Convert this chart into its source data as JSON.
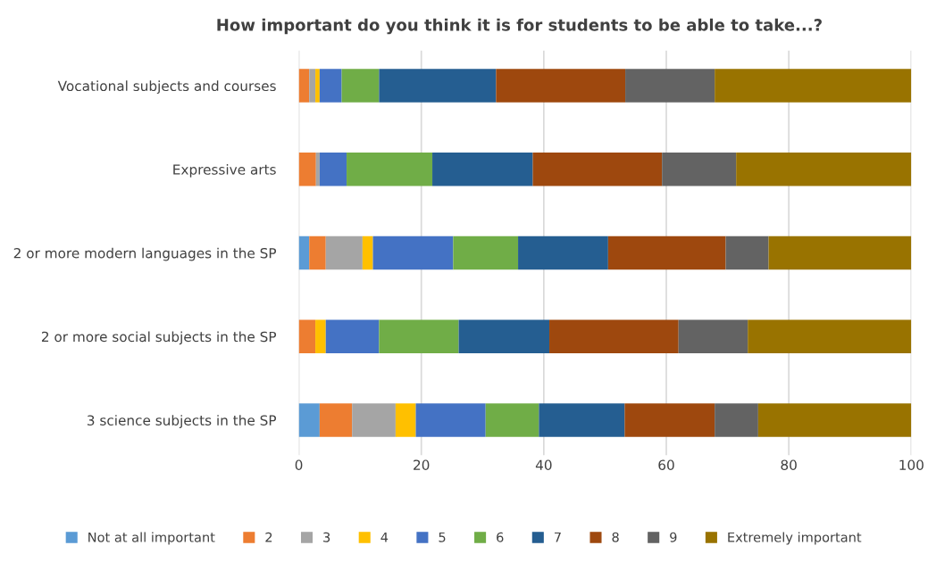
{
  "chart_data": {
    "type": "bar",
    "orientation": "horizontal",
    "stacked": true,
    "title": "How important do you think it is for students to be able to take...?",
    "categories": [
      "Vocational subjects and courses",
      "Expressive arts",
      "2 or more modern languages in the SP",
      "2 or more social subjects in the SP",
      "3 science subjects in the SP"
    ],
    "series": [
      {
        "name": "Not at all important",
        "color": "#5b9bd5",
        "values": [
          0,
          0,
          1.7,
          0,
          3.4
        ]
      },
      {
        "name": "2",
        "color": "#ed7d31",
        "values": [
          1.7,
          2.8,
          2.7,
          2.7,
          5.3
        ]
      },
      {
        "name": "3",
        "color": "#a5a5a5",
        "values": [
          1.0,
          0.6,
          6.0,
          0,
          7.1
        ]
      },
      {
        "name": "4",
        "color": "#ffc000",
        "values": [
          0.7,
          0,
          1.7,
          1.7,
          3.3
        ]
      },
      {
        "name": "5",
        "color": "#4472c4",
        "values": [
          3.6,
          4.4,
          13.1,
          8.7,
          11.4
        ]
      },
      {
        "name": "6",
        "color": "#70ad47",
        "values": [
          6.1,
          14.0,
          10.6,
          13.0,
          8.7
        ]
      },
      {
        "name": "7",
        "color": "#255e91",
        "values": [
          19.1,
          16.4,
          14.7,
          14.8,
          14.0
        ]
      },
      {
        "name": "8",
        "color": "#9e480e",
        "values": [
          21.1,
          21.1,
          19.2,
          21.1,
          14.7
        ]
      },
      {
        "name": "9",
        "color": "#636363",
        "values": [
          14.6,
          12.1,
          7.0,
          11.3,
          7.1
        ]
      },
      {
        "name": "Extremely important",
        "color": "#997300",
        "values": [
          32.1,
          28.6,
          23.3,
          26.7,
          25.0
        ]
      }
    ],
    "xlim": [
      0,
      100
    ],
    "xticks": [
      0,
      20,
      40,
      60,
      80,
      100
    ],
    "grid": "x",
    "legend": "bottom"
  }
}
